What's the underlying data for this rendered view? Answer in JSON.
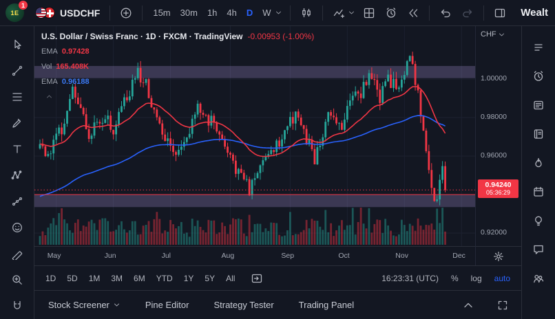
{
  "topbar": {
    "avatar_text": "1E",
    "notification_count": "1",
    "symbol": "USDCHF",
    "timeframes": [
      {
        "label": "15m",
        "active": false
      },
      {
        "label": "30m",
        "active": false
      },
      {
        "label": "1h",
        "active": false
      },
      {
        "label": "4h",
        "active": false
      },
      {
        "label": "D",
        "active": true
      },
      {
        "label": "W",
        "active": false
      }
    ],
    "right_text": "Wealt"
  },
  "legend": {
    "title": "U.S. Dollar / Swiss Franc · 1D · FXCM · TradingView",
    "change": "-0.00953 (-1.00%)",
    "rows": [
      {
        "label": "EMA",
        "value": "0.97428",
        "color": "#f23645"
      },
      {
        "label": "Vol",
        "value": "165.408K",
        "color": "#f23645"
      },
      {
        "label": "EMA",
        "value": "0.96188",
        "color": "#3b7af7"
      }
    ]
  },
  "price_axis": {
    "currency": "CHF",
    "labels": [
      {
        "text": "1.00000",
        "price": 1.0
      },
      {
        "text": "0.98000",
        "price": 0.98
      },
      {
        "text": "0.96000",
        "price": 0.96
      },
      {
        "text": "0.92000",
        "price": 0.92
      }
    ],
    "last_price": "0.94240",
    "countdown": "05:36:29"
  },
  "time_axis": {
    "months": [
      {
        "label": "May",
        "bar": 6
      },
      {
        "label": "Jun",
        "bar": 27
      },
      {
        "label": "Jul",
        "bar": 48
      },
      {
        "label": "Aug",
        "bar": 70
      },
      {
        "label": "Sep",
        "bar": 92
      },
      {
        "label": "Oct",
        "bar": 113
      },
      {
        "label": "Nov",
        "bar": 134
      },
      {
        "label": "Dec",
        "bar": 155
      }
    ]
  },
  "range_toolbar": {
    "ranges": [
      "1D",
      "5D",
      "1M",
      "3M",
      "6M",
      "YTD",
      "1Y",
      "5Y",
      "All"
    ],
    "time": "16:23:31 (UTC)",
    "percent_label": "%",
    "log_label": "log",
    "auto_label": "auto"
  },
  "bottom_panel": {
    "items": [
      {
        "label": "Stock Screener",
        "chevron": true
      },
      {
        "label": "Pine Editor",
        "chevron": false
      },
      {
        "label": "Strategy Tester",
        "chevron": false
      },
      {
        "label": "Trading Panel",
        "chevron": false
      }
    ]
  },
  "left_toolbar": {
    "tools": [
      "cursor",
      "trend-line",
      "fib-retracement",
      "brush",
      "text",
      "xabcd-pattern",
      "forecast",
      "emoji",
      "ruler",
      "zoom",
      "magnet"
    ]
  },
  "right_sidebar": {
    "tools": [
      "watchlist",
      "alerts",
      "news",
      "journal",
      "hotlists",
      "calendar",
      "ideas",
      "chat",
      "community"
    ]
  },
  "chart_data": {
    "type": "candlestick",
    "title": "U.S. Dollar / Swiss Franc",
    "symbol": "USDCHF",
    "interval": "1D",
    "exchange": "FXCM",
    "bars": 150,
    "last_price": 0.9424,
    "price_change": -0.00953,
    "price_change_pct": -1.0,
    "anchors": [
      [
        0,
        0.964
      ],
      [
        3,
        0.958
      ],
      [
        6,
        0.97
      ],
      [
        9,
        0.976
      ],
      [
        12,
        0.993
      ],
      [
        15,
        0.984
      ],
      [
        18,
        0.97
      ],
      [
        21,
        0.976
      ],
      [
        24,
        0.982
      ],
      [
        27,
        0.974
      ],
      [
        31,
        0.988
      ],
      [
        36,
        1.003
      ],
      [
        39,
        0.9975
      ],
      [
        43,
        0.979
      ],
      [
        46,
        0.969
      ],
      [
        50,
        0.961
      ],
      [
        54,
        0.9715
      ],
      [
        58,
        0.9855
      ],
      [
        62,
        0.979
      ],
      [
        65,
        0.975
      ],
      [
        69,
        0.964
      ],
      [
        73,
        0.95
      ],
      [
        77,
        0.943
      ],
      [
        79,
        0.9485
      ],
      [
        83,
        0.957
      ],
      [
        87,
        0.966
      ],
      [
        91,
        0.975
      ],
      [
        94,
        0.982
      ],
      [
        97,
        0.9715
      ],
      [
        101,
        0.959
      ],
      [
        103,
        0.966
      ],
      [
        107,
        0.984
      ],
      [
        111,
        0.975
      ],
      [
        115,
        0.9945
      ],
      [
        117,
        0.9895
      ],
      [
        121,
        1.0015
      ],
      [
        125,
        0.991
      ],
      [
        128,
        1.0
      ],
      [
        132,
        0.9945
      ],
      [
        136,
        1.014
      ],
      [
        139,
        0.991
      ],
      [
        141,
        0.97
      ],
      [
        144,
        0.941
      ],
      [
        146,
        0.938
      ],
      [
        148,
        0.953
      ],
      [
        149,
        0.9424
      ]
    ],
    "zones": [
      {
        "from": 1.0005,
        "to": 1.0068
      },
      {
        "from": 0.9335,
        "to": 0.94
      }
    ],
    "zone_color": "rgba(164,142,212,0.28)",
    "level_line": {
      "price": 0.94,
      "color": "#f23645"
    },
    "grid_prices": [
      1.0,
      0.98,
      0.96,
      0.94,
      0.92
    ],
    "emas": [
      {
        "label": "EMA",
        "value": 0.97428,
        "color": "#f23645"
      },
      {
        "label": "EMA",
        "value": 0.96188,
        "color": "#2962ff"
      }
    ],
    "volume_last": "165.408K",
    "colors": {
      "up": "#26a69a",
      "down": "#f23645"
    },
    "y_range": [
      0.9132,
      1.0275
    ],
    "x_labels": [
      "May",
      "Jun",
      "Jul",
      "Aug",
      "Sep",
      "Oct",
      "Nov",
      "Dec"
    ]
  }
}
